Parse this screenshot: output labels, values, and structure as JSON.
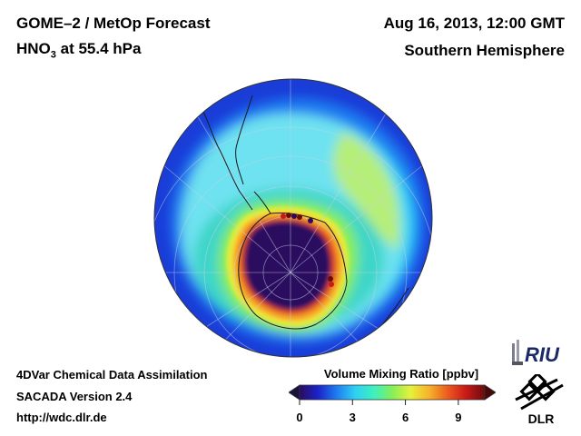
{
  "header": {
    "title": "GOME–2 / MetOp Forecast",
    "species_main": "HNO",
    "species_sub": "3",
    "species_level": " at 55.4 hPa",
    "datetime": "Aug 16, 2013, 12:00 GMT",
    "region": "Southern Hemisphere"
  },
  "footer": {
    "line1": "4DVar Chemical Data Assimilation",
    "line2": "SACADA Version 2.4",
    "line3": "http://wdc.dlr.de"
  },
  "colorbar": {
    "title": "Volume Mixing Ratio [ppbv]",
    "ticks": [
      "0",
      "3",
      "6",
      "9"
    ],
    "range": [
      0,
      10.5
    ],
    "colors": [
      "#2b0a5e",
      "#1a24c8",
      "#1f7cf0",
      "#2ed0f5",
      "#3cf0c0",
      "#86ee58",
      "#e8f03a",
      "#f6b22a",
      "#ec5a1e",
      "#c81818",
      "#6a0c0c"
    ]
  },
  "map": {
    "projection": "orthographic south polar",
    "field": "HNO3 volume mixing ratio",
    "zones": [
      {
        "label": "outer",
        "value": 4.5,
        "color": "#2ed0f5"
      },
      {
        "label": "teal",
        "value": 5.2,
        "color": "#3cd6c8"
      },
      {
        "label": "green",
        "value": 6.2,
        "color": "#86ee58"
      },
      {
        "label": "yellow",
        "value": 7.2,
        "color": "#f0ee3a"
      },
      {
        "label": "orange",
        "value": 8.2,
        "color": "#f6a52a"
      },
      {
        "label": "red",
        "value": 9.2,
        "color": "#e04a22"
      },
      {
        "label": "depleted core",
        "value": 0.4,
        "color": "#2b0a5e"
      }
    ]
  },
  "logos": {
    "riu": "RIU",
    "dlr": "DLR"
  }
}
